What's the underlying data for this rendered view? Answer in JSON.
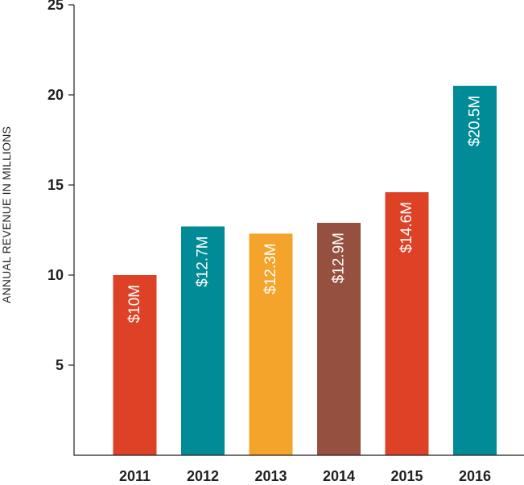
{
  "chart_data": {
    "type": "bar",
    "title": "",
    "xlabel": "",
    "ylabel": "ANNUAL REVENUE IN MILLIONS",
    "ylim": [
      0,
      25
    ],
    "yticks": [
      5,
      10,
      15,
      20,
      25
    ],
    "grid": false,
    "legend": "none",
    "categories": [
      "2011",
      "2012",
      "2013",
      "2014",
      "2015",
      "2016"
    ],
    "values": [
      10,
      12.7,
      12.3,
      12.9,
      14.6,
      20.5
    ],
    "data_labels": [
      "$10M",
      "$12.7M",
      "$12.3M",
      "$12.9M",
      "$14.6M",
      "$20.5M"
    ],
    "colors": [
      "#dd4227",
      "#008b96",
      "#f5a42b",
      "#95503f",
      "#dd4227",
      "#008b96"
    ]
  }
}
